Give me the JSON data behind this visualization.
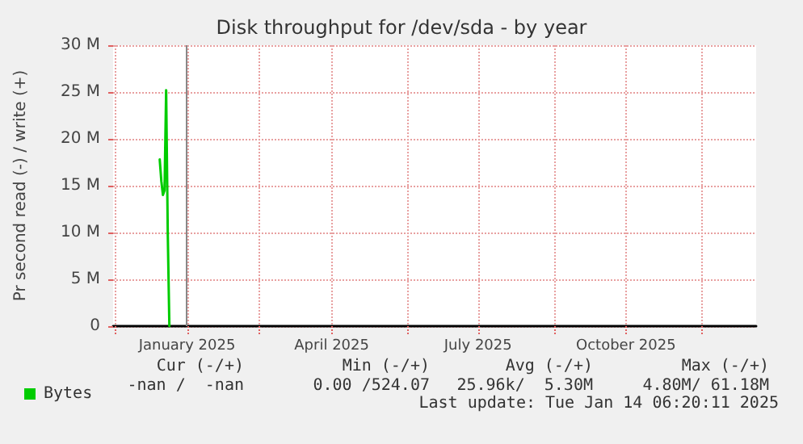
{
  "chart_data": {
    "type": "line",
    "title": "Disk throughput for /dev/sda - by year",
    "ylabel": "Pr second read (-) / write (+)",
    "x": [
      "2024-12-29",
      "2024-12-30",
      "2024-12-31",
      "2025-01-01",
      "2025-01-02",
      "2025-01-03",
      "2025-01-04"
    ],
    "series": [
      {
        "name": "Bytes",
        "color": "#00cc00",
        "values": [
          17800000,
          15500000,
          14000000,
          14500000,
          25200000,
          10000000,
          0
        ]
      }
    ],
    "xlim": [
      "2024-11-30",
      "2026-01-04"
    ],
    "xticks": [
      {
        "value": "2024-12-01",
        "label": null
      },
      {
        "value": "2025-01-15",
        "label": "January 2025"
      },
      {
        "value": "2025-03-01",
        "label": null
      },
      {
        "value": "2025-04-15",
        "label": "April 2025"
      },
      {
        "value": "2025-06-01",
        "label": null
      },
      {
        "value": "2025-07-15",
        "label": "July 2025"
      },
      {
        "value": "2025-09-01",
        "label": null
      },
      {
        "value": "2025-10-15",
        "label": "October 2025"
      },
      {
        "value": "2025-12-01",
        "label": null
      }
    ],
    "ylim": [
      0,
      30000000
    ],
    "yticks": [
      0,
      {
        "value": 5000000,
        "label": "5 M"
      },
      {
        "value": 10000000,
        "label": "10 M"
      },
      {
        "value": 15000000,
        "label": "15 M"
      },
      {
        "value": 20000000,
        "label": "20 M"
      },
      {
        "value": 25000000,
        "label": "25 M"
      },
      {
        "value": 30000000,
        "label": "30 M"
      }
    ],
    "ref_lines": [
      {
        "axis": "x",
        "value": "2025-01-14",
        "label": null,
        "color": "#888888"
      }
    ],
    "grid": true,
    "legend": "bottom left",
    "marker": "none",
    "line_style": "solid",
    "annotations": [
      "Cur (-/+)",
      "Min (-/+)",
      "Avg (-/+)",
      "Max (-/+)",
      "-nan /  -nan",
      "0.00 /524.07",
      "25.96k/  5.30M",
      "4.80M/ 61.18M",
      "Last update: Tue Jan 14 06:20:11 2025"
    ]
  }
}
